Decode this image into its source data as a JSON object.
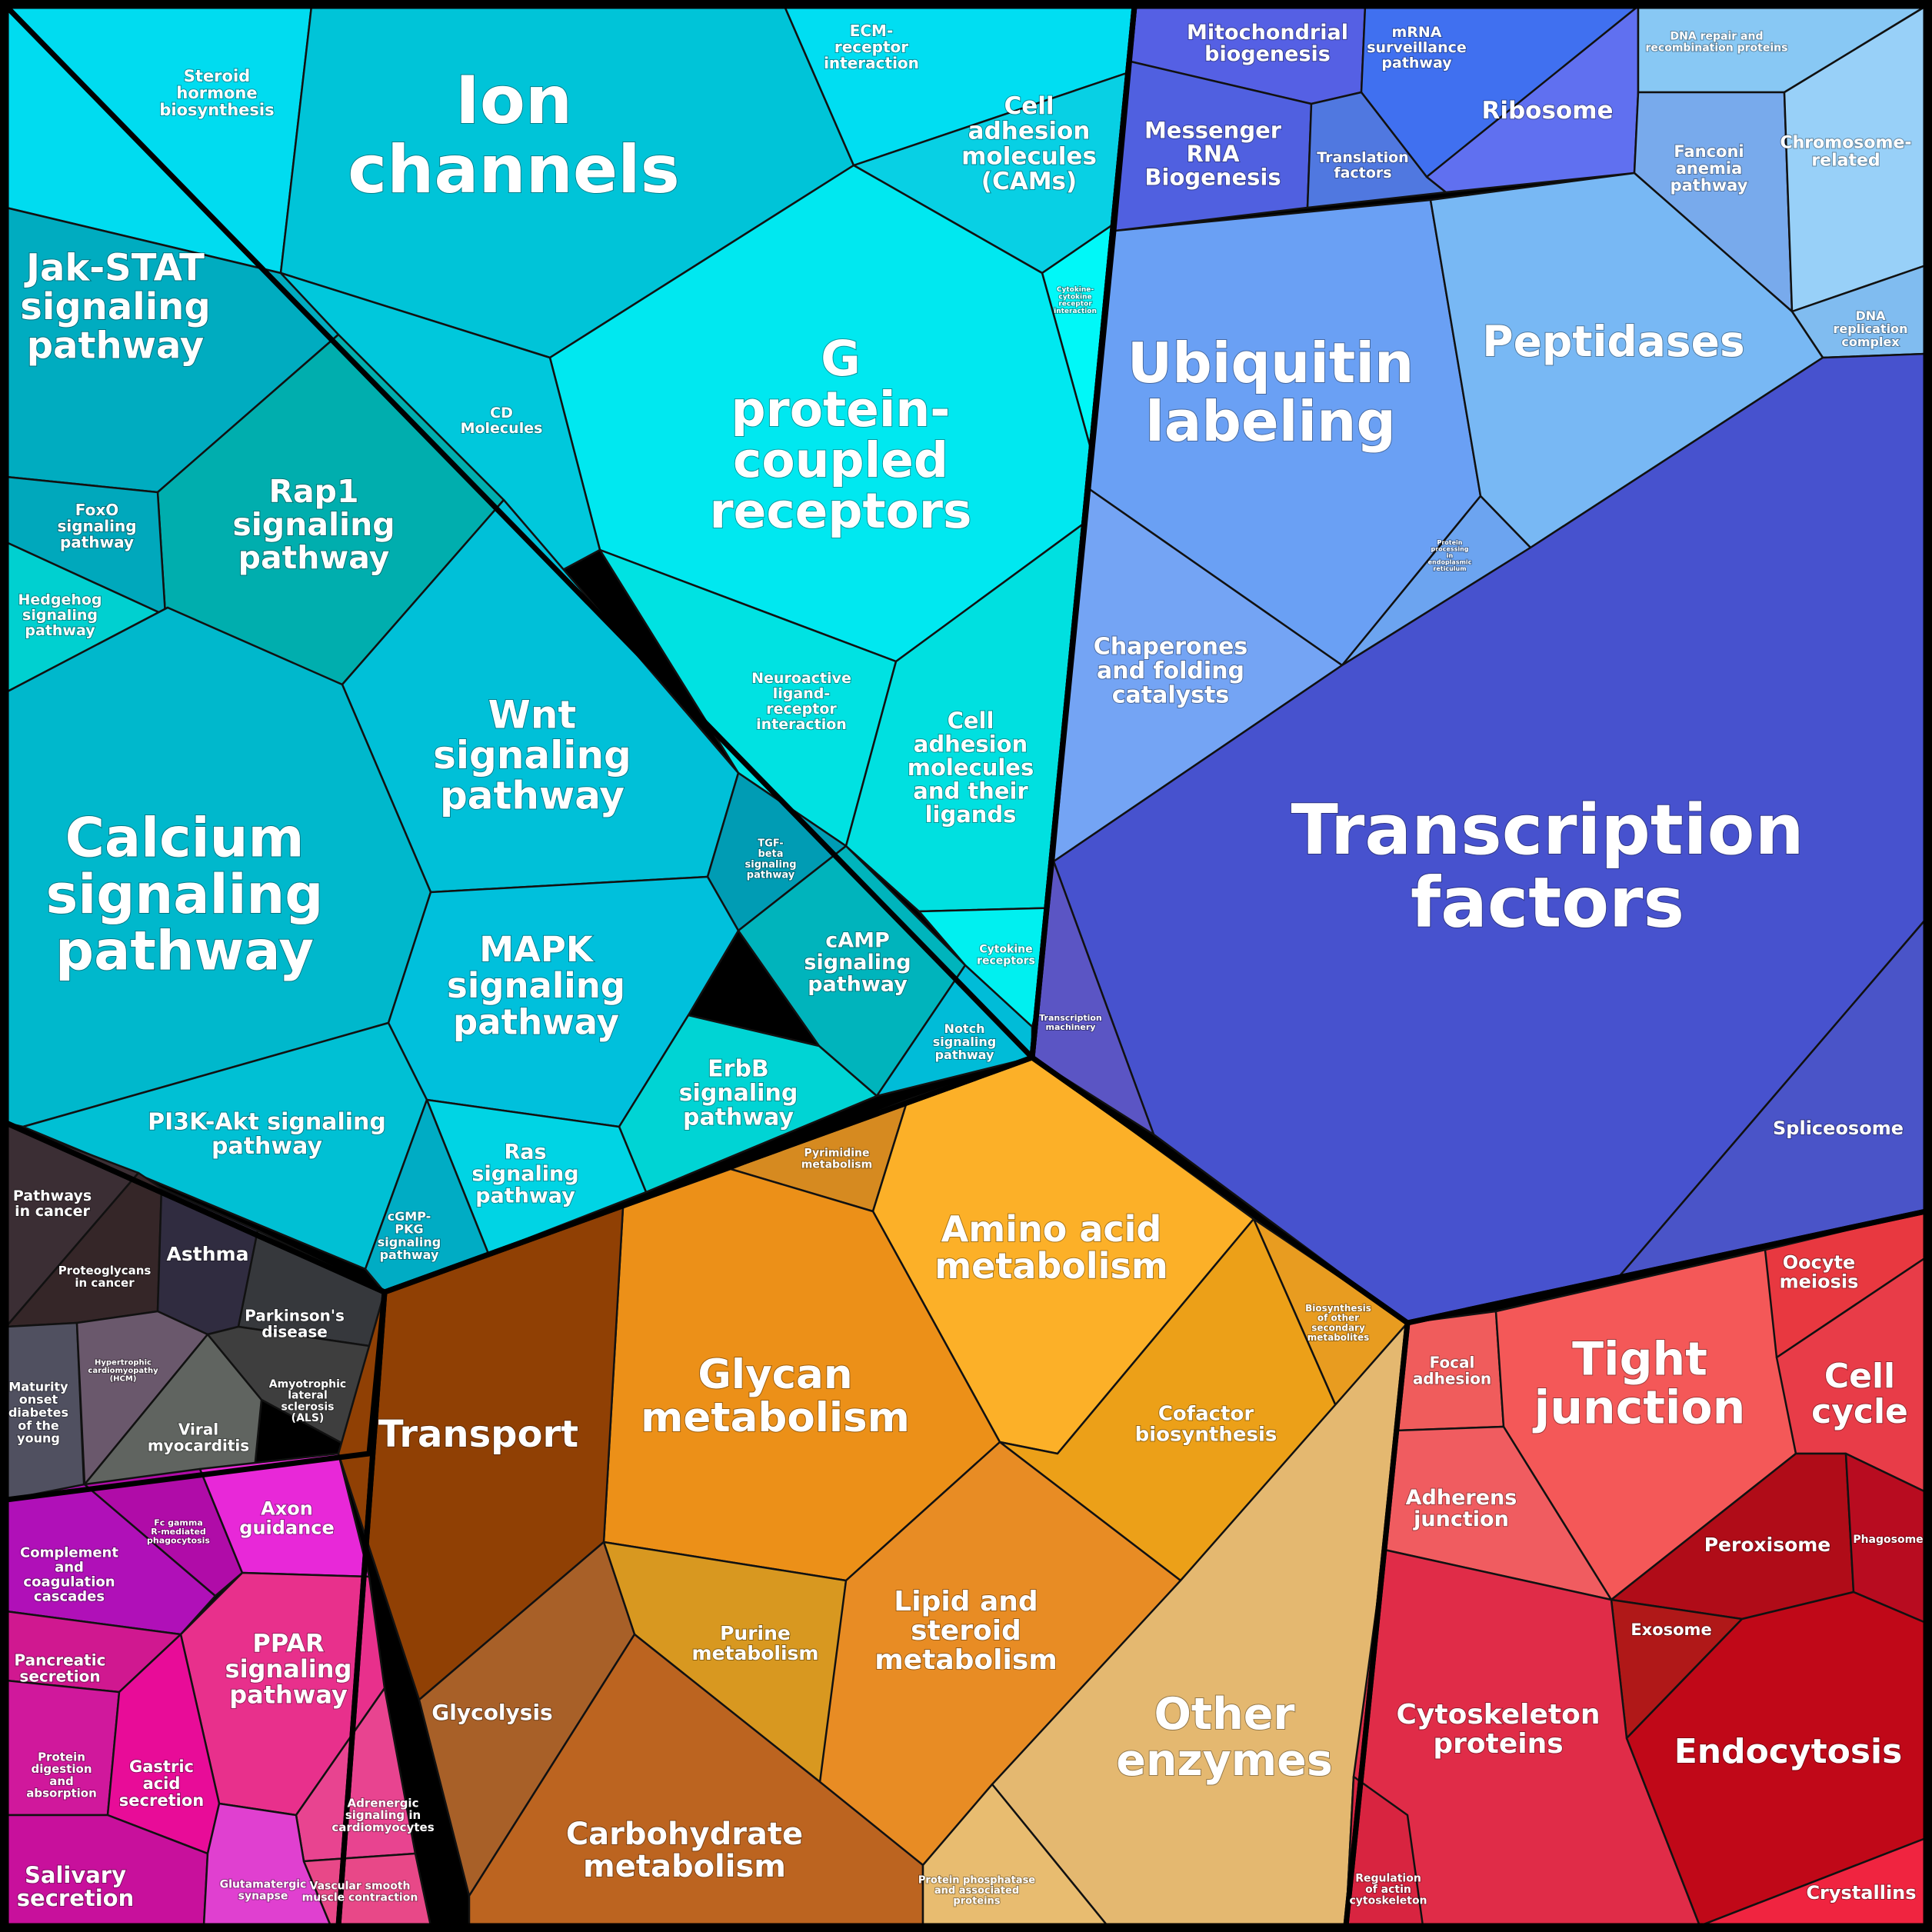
{
  "cells": [
    {
      "id": "steroid-hormone-biosynthesis",
      "label": "Steroid\nhormone\nbiosynthesis",
      "color": "#00dcf0"
    },
    {
      "id": "ion-channels",
      "label": "Ion\nchannels",
      "color": "#00c4d8"
    },
    {
      "id": "ecm-receptor-interaction",
      "label": "ECM-\nreceptor\ninteraction",
      "color": "#00def2"
    },
    {
      "id": "cell-adhesion-molecules-cams",
      "label": "Cell\nadhesion\nmolecules\n(CAMs)",
      "color": "#08d0e4"
    },
    {
      "id": "cytokine-cytokine-receptor-interaction",
      "label": "Cytokine-\ncytokine\nreceptor\ninteraction",
      "color": "#00f8f8"
    },
    {
      "id": "g-protein-coupled-receptors",
      "label": "G\nprotein-\ncoupled\nreceptors",
      "color": "#00e8f0"
    },
    {
      "id": "cd-molecules",
      "label": "CD\nMolecules",
      "color": "#00c8dc"
    },
    {
      "id": "jak-stat-signaling-pathway",
      "label": "Jak-STAT\nsignaling\npathway",
      "color": "#00acc0"
    },
    {
      "id": "rap1-signaling-pathway",
      "label": "Rap1\nsignaling\npathway",
      "color": "#00aeae"
    },
    {
      "id": "foxo-signaling-pathway",
      "label": "FoxO\nsignaling\npathway",
      "color": "#00a8bc"
    },
    {
      "id": "hedgehog-signaling-pathway",
      "label": "Hedgehog\nsignaling\npathway",
      "color": "#00d0d0"
    },
    {
      "id": "neuroactive-ligand-receptor-interaction",
      "label": "Neuroactive\nligand-\nreceptor\ninteraction",
      "color": "#00e2e2"
    },
    {
      "id": "cell-adhesion-molecules-and-their-ligands",
      "label": "Cell\nadhesion\nmolecules\nand their\nligands",
      "color": "#00e0e0"
    },
    {
      "id": "wnt-signaling-pathway",
      "label": "Wnt\nsignaling\npathway",
      "color": "#00c0d8"
    },
    {
      "id": "calcium-signaling-pathway",
      "label": "Calcium\nsignaling\npathway",
      "color": "#00b8cc"
    },
    {
      "id": "tgf-beta-signaling-pathway",
      "label": "TGF-\nbeta\nsignaling\npathway",
      "color": "#009cb4"
    },
    {
      "id": "mapk-signaling-pathway",
      "label": "MAPK\nsignaling\npathway",
      "color": "#00c0dc"
    },
    {
      "id": "camp-signaling-pathway",
      "label": "cAMP\nsignaling\npathway",
      "color": "#00b4bc"
    },
    {
      "id": "cytokine-receptors",
      "label": "Cytokine\nreceptors",
      "color": "#00f0f0"
    },
    {
      "id": "notch-signaling-pathway",
      "label": "Notch\nsignaling\npathway",
      "color": "#00bcd8"
    },
    {
      "id": "erbb-signaling-pathway",
      "label": "ErbB\nsignaling\npathway",
      "color": "#00d4d4"
    },
    {
      "id": "pi3k-akt-signaling-pathway",
      "label": "PI3K-Akt signaling\npathway",
      "color": "#00c0d4"
    },
    {
      "id": "ras-signaling-pathway",
      "label": "Ras\nsignaling\npathway",
      "color": "#00d4e4"
    },
    {
      "id": "cgmp-pkg-signaling-pathway",
      "label": "cGMP-\nPKG\nsignaling\npathway",
      "color": "#00acc4"
    },
    {
      "id": "mitochondrial-biogenesis",
      "label": "Mitochondrial\nbiogenesis",
      "color": "#5560e4"
    },
    {
      "id": "mrna-surveillance-pathway",
      "label": "mRNA\nsurveillance\npathway",
      "color": "#4070f0"
    },
    {
      "id": "messenger-rna-biogenesis",
      "label": "Messenger\nRNA\nBiogenesis",
      "color": "#5060e0"
    },
    {
      "id": "translation-factors",
      "label": "Translation\nfactors",
      "color": "#5078e0"
    },
    {
      "id": "ribosome",
      "label": "Ribosome",
      "color": "#6070f0"
    },
    {
      "id": "dna-repair-and-recombination-proteins",
      "label": "DNA repair and\nrecombination proteins",
      "color": "#88c8f4"
    },
    {
      "id": "fanconi-anemia-pathway",
      "label": "Fanconi\nanemia\npathway",
      "color": "#78aaec"
    },
    {
      "id": "chromosome-related",
      "label": "Chromosome-\nrelated",
      "color": "#98d0f8"
    },
    {
      "id": "dna-replication-complex",
      "label": "DNA\nreplication\ncomplex",
      "color": "#80bcf0"
    },
    {
      "id": "ubiquitin-labeling",
      "label": "Ubiquitin\nlabeling",
      "color": "#6aa0f4"
    },
    {
      "id": "peptidases",
      "label": "Peptidases",
      "color": "#78b8f4"
    },
    {
      "id": "protein-processing-in-endoplasmic-reticulum",
      "label": "Protein\nprocessing\nin\nendoplasmic\nreticulum",
      "color": "#6ca4f0"
    },
    {
      "id": "chaperones-and-folding-catalysts",
      "label": "Chaperones\nand folding\ncatalysts",
      "color": "#74a4f4"
    },
    {
      "id": "transcription-factors",
      "label": "Transcription\nfactors",
      "color": "#4752ce"
    },
    {
      "id": "transcription-machinery",
      "label": "Transcription\nmachinery",
      "color": "#5b55c4"
    },
    {
      "id": "spliceosome",
      "label": "Spliceosome",
      "color": "#4a54c8"
    },
    {
      "id": "pathways-in-cancer",
      "label": "Pathways\nin cancer",
      "color": "#3b2e34"
    },
    {
      "id": "proteoglycans-in-cancer",
      "label": "Proteoglycans\nin cancer",
      "color": "#352628"
    },
    {
      "id": "asthma",
      "label": "Asthma",
      "color": "#302c40"
    },
    {
      "id": "parkinsons-disease",
      "label": "Parkinson's\ndisease",
      "color": "#36383c"
    },
    {
      "id": "maturity-onset-diabetes-of-the-young",
      "label": "Maturity\nonset\ndiabetes\nof the\nyoung",
      "color": "#505060"
    },
    {
      "id": "hypertrophic-cardiomyopathy-hcm",
      "label": "Hypertrophic\ncardiomyopathy\n(HCM)",
      "color": "#6a586c"
    },
    {
      "id": "viral-myocarditis",
      "label": "Viral\nmyocarditis",
      "color": "#606460"
    },
    {
      "id": "amyotrophic-lateral-sclerosis-als",
      "label": "Amyotrophic\nlateral\nsclerosis\n(ALS)",
      "color": "#3e3e3e"
    },
    {
      "id": "complement-and-coagulation-cascades",
      "label": "Complement\nand\ncoagulation\ncascades",
      "color": "#b010b8"
    },
    {
      "id": "fc-gamma-r-mediated-phagocytosis",
      "label": "Fc gamma\nR-mediated\nphagocytosis",
      "color": "#b00ca8"
    },
    {
      "id": "axon-guidance",
      "label": "Axon\nguidance",
      "color": "#e828d8"
    },
    {
      "id": "pancreatic-secretion",
      "label": "Pancreatic\nsecretion",
      "color": "#d01890"
    },
    {
      "id": "ppar-signaling-pathway",
      "label": "PPAR\nsignaling\npathway",
      "color": "#e8308c"
    },
    {
      "id": "protein-digestion-and-absorption",
      "label": "Protein\ndigestion\nand\nabsorption",
      "color": "#d0189c"
    },
    {
      "id": "gastric-acid-secretion",
      "label": "Gastric\nacid\nsecretion",
      "color": "#e80c98"
    },
    {
      "id": "adrenergic-signaling-in-cardiomyocytes",
      "label": "Adrenergic\nsignaling in\ncardiomyocytes",
      "color": "#e84490"
    },
    {
      "id": "salivary-secretion",
      "label": "Salivary\nsecretion",
      "color": "#c8109c"
    },
    {
      "id": "glutamatergic-synapse",
      "label": "Glutamatergic\nsynapse",
      "color": "#e040d0"
    },
    {
      "id": "vascular-smooth-muscle-contraction",
      "label": "Vascular smooth\nmuscle contraction",
      "color": "#e84888"
    },
    {
      "id": "pyrimidine-metabolism",
      "label": "Pyrimidine\nmetabolism",
      "color": "#d68a20"
    },
    {
      "id": "amino-acid-metabolism",
      "label": "Amino acid\nmetabolism",
      "color": "#fcb028"
    },
    {
      "id": "biosynthesis-of-other-secondary-metabolites",
      "label": "Biosynthesis\nof other\nsecondary\nmetabolites",
      "color": "#e89c20"
    },
    {
      "id": "glycan-metabolism",
      "label": "Glycan\nmetabolism",
      "color": "#ec9018"
    },
    {
      "id": "cofactor-biosynthesis",
      "label": "Cofactor\nbiosynthesis",
      "color": "#eca018"
    },
    {
      "id": "transport",
      "label": "Transport",
      "color": "#904004"
    },
    {
      "id": "purine-metabolism",
      "label": "Purine\nmetabolism",
      "color": "#d89820"
    },
    {
      "id": "lipid-and-steroid-metabolism",
      "label": "Lipid and\nsteroid\nmetabolism",
      "color": "#e88c24"
    },
    {
      "id": "other-enzymes",
      "label": "Other\nenzymes",
      "color": "#e4b870"
    },
    {
      "id": "glycolysis",
      "label": "Glycolysis",
      "color": "#a86028"
    },
    {
      "id": "carbohydrate-metabolism",
      "label": "Carbohydrate\nmetabolism",
      "color": "#bc6420"
    },
    {
      "id": "protein-phosphatase-and-associated-proteins",
      "label": "Protein phosphatase\nand associated\nproteins",
      "color": "#e8bc70"
    },
    {
      "id": "focal-adhesion",
      "label": "Focal\nadhesion",
      "color": "#f05c5c"
    },
    {
      "id": "tight-junction",
      "label": "Tight\njunction",
      "color": "#f45858"
    },
    {
      "id": "oocyte-meiosis",
      "label": "Oocyte\nmeiosis",
      "color": "#e83840"
    },
    {
      "id": "cell-cycle",
      "label": "Cell\ncycle",
      "color": "#e83c48"
    },
    {
      "id": "adherens-junction",
      "label": "Adherens\njunction",
      "color": "#f05c60"
    },
    {
      "id": "peroxisome",
      "label": "Peroxisome",
      "color": "#b00c18"
    },
    {
      "id": "phagosome",
      "label": "Phagosome",
      "color": "#b80c20"
    },
    {
      "id": "exosome",
      "label": "Exosome",
      "color": "#b01818"
    },
    {
      "id": "cytoskeleton-proteins",
      "label": "Cytoskeleton\nproteins",
      "color": "#e02c48"
    },
    {
      "id": "endocytosis",
      "label": "Endocytosis",
      "color": "#c00818"
    },
    {
      "id": "regulation-of-actin-cytoskeleton",
      "label": "Regulation\nof actin\ncytoskeleton",
      "color": "#d82440"
    },
    {
      "id": "crystallins",
      "label": "Crystallins",
      "color": "#f02440"
    }
  ]
}
